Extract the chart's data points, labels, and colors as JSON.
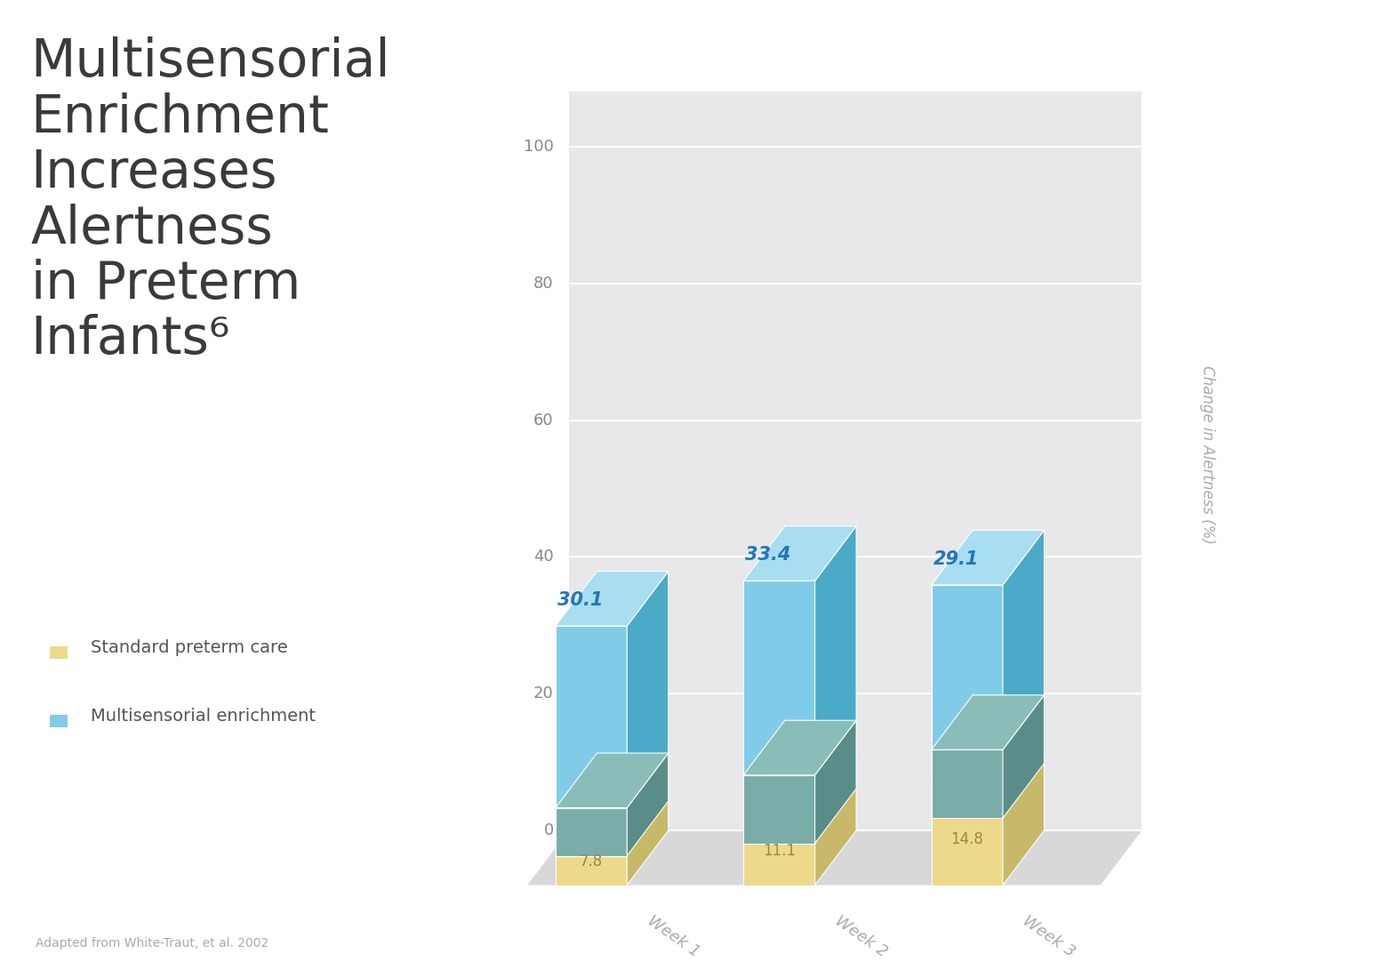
{
  "title_text": "Multisensorial\nEnrichment\nIncreases\nAlertness\nin Preterm\nInfants⁶",
  "subtitle": "Adapted from White-Traut, et al. 2002",
  "categories": [
    "Week 1",
    "Week 2",
    "Week 3"
  ],
  "standard_values": [
    7.8,
    11.1,
    14.8
  ],
  "enrichment_values": [
    30.1,
    33.4,
    29.1
  ],
  "ylabel": "Change in Alertness (%)",
  "yticks": [
    0,
    20,
    40,
    60,
    80,
    100
  ],
  "ylim": [
    0,
    108
  ],
  "legend_labels": [
    "Standard preterm care",
    "Multisensorial enrichment"
  ],
  "yellow_face": "#edd98a",
  "yellow_side": "#c8b86a",
  "yellow_top": "#e0cc80",
  "blue_face": "#80cce8",
  "blue_side": "#4aaac8",
  "blue_top": "#a8def0",
  "teal_face": "#7aada8",
  "teal_side": "#5a8d88",
  "teal_top": "#8abdb8",
  "value_color_yellow": "#998844",
  "value_color_blue": "#2277bb",
  "panel_back_color": "#e8e8ea",
  "panel_floor_color": "#d8d8da",
  "gridline_color": "#ffffff",
  "title_color": "#3a3a3a",
  "tick_color": "#888888",
  "label_color": "#aaaaaa"
}
